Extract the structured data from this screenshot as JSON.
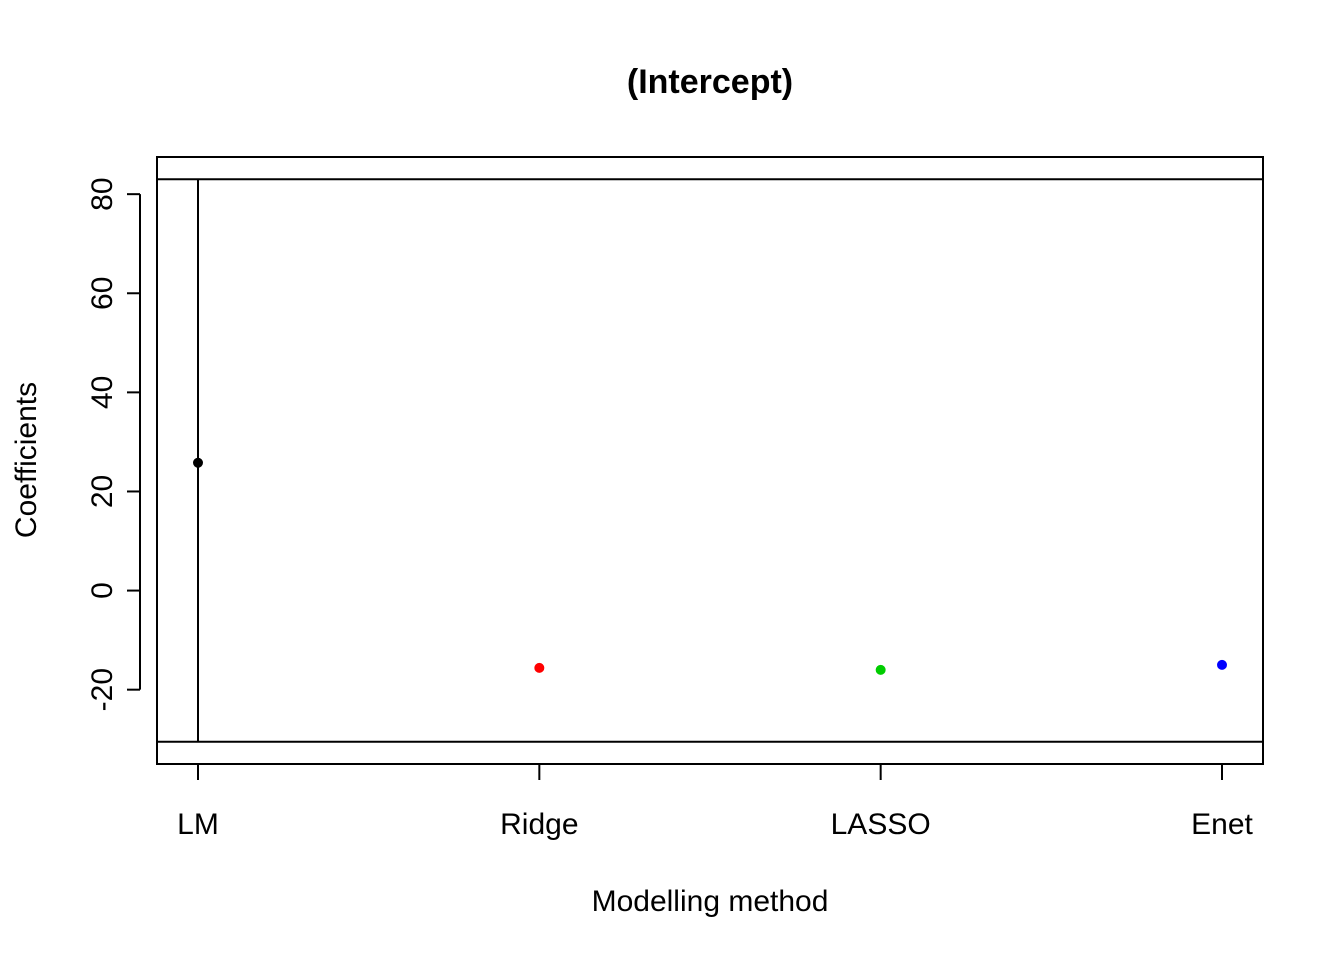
{
  "chart_data": {
    "type": "scatter",
    "title": "(Intercept)",
    "xlabel": "Modelling method",
    "ylabel": "Coefficients",
    "categories": [
      "LM",
      "Ridge",
      "LASSO",
      "Enet"
    ],
    "points": [
      {
        "category": "LM",
        "value": 25.8,
        "color": "#000000"
      },
      {
        "category": "Ridge",
        "value": -15.6,
        "color": "#ff0000"
      },
      {
        "category": "LASSO",
        "value": -16.0,
        "color": "#00cd00"
      },
      {
        "category": "Enet",
        "value": -15.0,
        "color": "#0000ff"
      }
    ],
    "error_bar": {
      "category": "LM",
      "low": -30.5,
      "high": 83.0
    },
    "reference_lines": [
      83.0,
      -30.5
    ],
    "y_ticks": [
      -20,
      0,
      20,
      40,
      60,
      80
    ],
    "ylim": [
      -35.0,
      87.5
    ],
    "grid": false,
    "legend": "none"
  }
}
